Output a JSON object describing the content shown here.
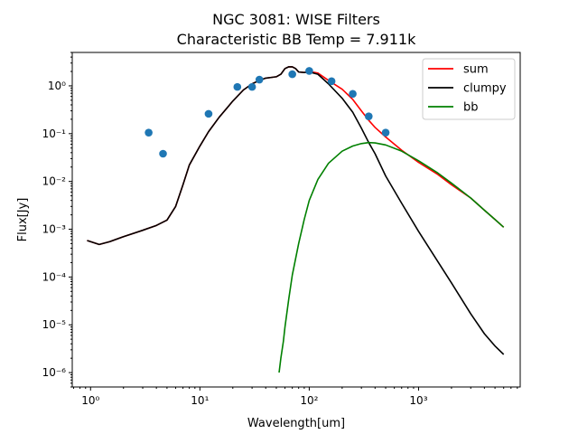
{
  "chart_data": {
    "type": "line",
    "title": "NGC 3081: WISE Filters",
    "subtitle": "Characteristic BB Temp = 7.911k",
    "xlabel": "Wavelength[um]",
    "ylabel": "Flux[Jy]",
    "xscale": "log",
    "yscale": "log",
    "xlim": [
      0.68,
      8500
    ],
    "ylim": [
      5e-07,
      5
    ],
    "grid": false,
    "legend_position": "top-right",
    "x_ticks": [
      {
        "value": 1,
        "label": "10⁰"
      },
      {
        "value": 10,
        "label": "10¹"
      },
      {
        "value": 100,
        "label": "10²"
      },
      {
        "value": 1000,
        "label": "10³"
      }
    ],
    "y_ticks": [
      {
        "value": 1e-06,
        "label": "10⁻⁶"
      },
      {
        "value": 1e-05,
        "label": "10⁻⁵"
      },
      {
        "value": 0.0001,
        "label": "10⁻⁴"
      },
      {
        "value": 0.001,
        "label": "10⁻³"
      },
      {
        "value": 0.01,
        "label": "10⁻²"
      },
      {
        "value": 0.1,
        "label": "10⁻¹"
      },
      {
        "value": 1,
        "label": "10⁰"
      }
    ],
    "series": [
      {
        "name": "sum",
        "kind": "line",
        "color": "#ff0000",
        "points": [
          [
            0.93,
            0.00058
          ],
          [
            1.2,
            0.00048
          ],
          [
            1.5,
            0.00055
          ],
          [
            2,
            0.0007
          ],
          [
            3,
            0.00095
          ],
          [
            4,
            0.0012
          ],
          [
            5,
            0.00155
          ],
          [
            6,
            0.003
          ],
          [
            7,
            0.0085
          ],
          [
            8,
            0.022
          ],
          [
            10,
            0.055
          ],
          [
            12,
            0.11
          ],
          [
            15,
            0.22
          ],
          [
            20,
            0.48
          ],
          [
            25,
            0.82
          ],
          [
            30,
            1.1
          ],
          [
            35,
            1.3
          ],
          [
            40,
            1.45
          ],
          [
            45,
            1.5
          ],
          [
            50,
            1.55
          ],
          [
            55,
            1.75
          ],
          [
            60,
            2.3
          ],
          [
            65,
            2.5
          ],
          [
            70,
            2.5
          ],
          [
            75,
            2.3
          ],
          [
            80,
            1.95
          ],
          [
            90,
            1.9
          ],
          [
            100,
            2.0
          ],
          [
            120,
            1.85
          ],
          [
            150,
            1.3
          ],
          [
            200,
            0.85
          ],
          [
            250,
            0.52
          ],
          [
            300,
            0.3
          ],
          [
            350,
            0.19
          ],
          [
            400,
            0.135
          ],
          [
            500,
            0.085
          ],
          [
            700,
            0.045
          ],
          [
            1000,
            0.025
          ],
          [
            1500,
            0.014
          ],
          [
            2000,
            0.0085
          ],
          [
            3000,
            0.0045
          ],
          [
            4000,
            0.0025
          ],
          [
            5000,
            0.0016
          ],
          [
            6000,
            0.0011
          ]
        ]
      },
      {
        "name": "clumpy",
        "kind": "line",
        "color": "#000000",
        "points": [
          [
            0.93,
            0.00058
          ],
          [
            1.2,
            0.00048
          ],
          [
            1.5,
            0.00055
          ],
          [
            2,
            0.0007
          ],
          [
            3,
            0.00095
          ],
          [
            4,
            0.0012
          ],
          [
            5,
            0.00155
          ],
          [
            6,
            0.003
          ],
          [
            7,
            0.0085
          ],
          [
            8,
            0.022
          ],
          [
            10,
            0.055
          ],
          [
            12,
            0.11
          ],
          [
            15,
            0.22
          ],
          [
            20,
            0.48
          ],
          [
            25,
            0.82
          ],
          [
            30,
            1.1
          ],
          [
            35,
            1.3
          ],
          [
            40,
            1.45
          ],
          [
            45,
            1.5
          ],
          [
            50,
            1.55
          ],
          [
            55,
            1.75
          ],
          [
            60,
            2.3
          ],
          [
            65,
            2.5
          ],
          [
            70,
            2.5
          ],
          [
            75,
            2.3
          ],
          [
            80,
            1.95
          ],
          [
            90,
            1.9
          ],
          [
            100,
            1.95
          ],
          [
            120,
            1.75
          ],
          [
            150,
            1.1
          ],
          [
            200,
            0.55
          ],
          [
            250,
            0.28
          ],
          [
            300,
            0.13
          ],
          [
            350,
            0.065
          ],
          [
            400,
            0.038
          ],
          [
            500,
            0.013
          ],
          [
            700,
            0.0035
          ],
          [
            1000,
            0.0009
          ],
          [
            1500,
            0.00021
          ],
          [
            2000,
            7.5e-05
          ],
          [
            3000,
            1.7e-05
          ],
          [
            4000,
            6.5e-06
          ],
          [
            5000,
            3.6e-06
          ],
          [
            6000,
            2.4e-06
          ]
        ]
      },
      {
        "name": "bb",
        "kind": "line",
        "color": "#008000",
        "points": [
          [
            53,
            1e-06
          ],
          [
            55,
            2e-06
          ],
          [
            58,
            4.5e-06
          ],
          [
            60,
            9e-06
          ],
          [
            65,
            3.5e-05
          ],
          [
            70,
            0.00011
          ],
          [
            80,
            0.0005
          ],
          [
            90,
            0.0016
          ],
          [
            100,
            0.004
          ],
          [
            120,
            0.011
          ],
          [
            150,
            0.024
          ],
          [
            200,
            0.043
          ],
          [
            250,
            0.055
          ],
          [
            300,
            0.062
          ],
          [
            350,
            0.065
          ],
          [
            400,
            0.064
          ],
          [
            500,
            0.058
          ],
          [
            700,
            0.043
          ],
          [
            1000,
            0.027
          ],
          [
            1500,
            0.015
          ],
          [
            2000,
            0.0092
          ],
          [
            3000,
            0.0045
          ],
          [
            4000,
            0.0025
          ],
          [
            5000,
            0.0016
          ],
          [
            6000,
            0.0011
          ]
        ]
      },
      {
        "name": "",
        "kind": "scatter",
        "color": "#1f77b4",
        "points": [
          [
            3.4,
            0.105
          ],
          [
            4.6,
            0.038
          ],
          [
            12,
            0.26
          ],
          [
            22,
            0.95
          ],
          [
            30,
            0.95
          ],
          [
            35,
            1.35
          ],
          [
            70,
            1.75
          ],
          [
            100,
            2.05
          ],
          [
            160,
            1.25
          ],
          [
            250,
            0.68
          ],
          [
            350,
            0.23
          ],
          [
            500,
            0.105
          ]
        ]
      }
    ]
  }
}
